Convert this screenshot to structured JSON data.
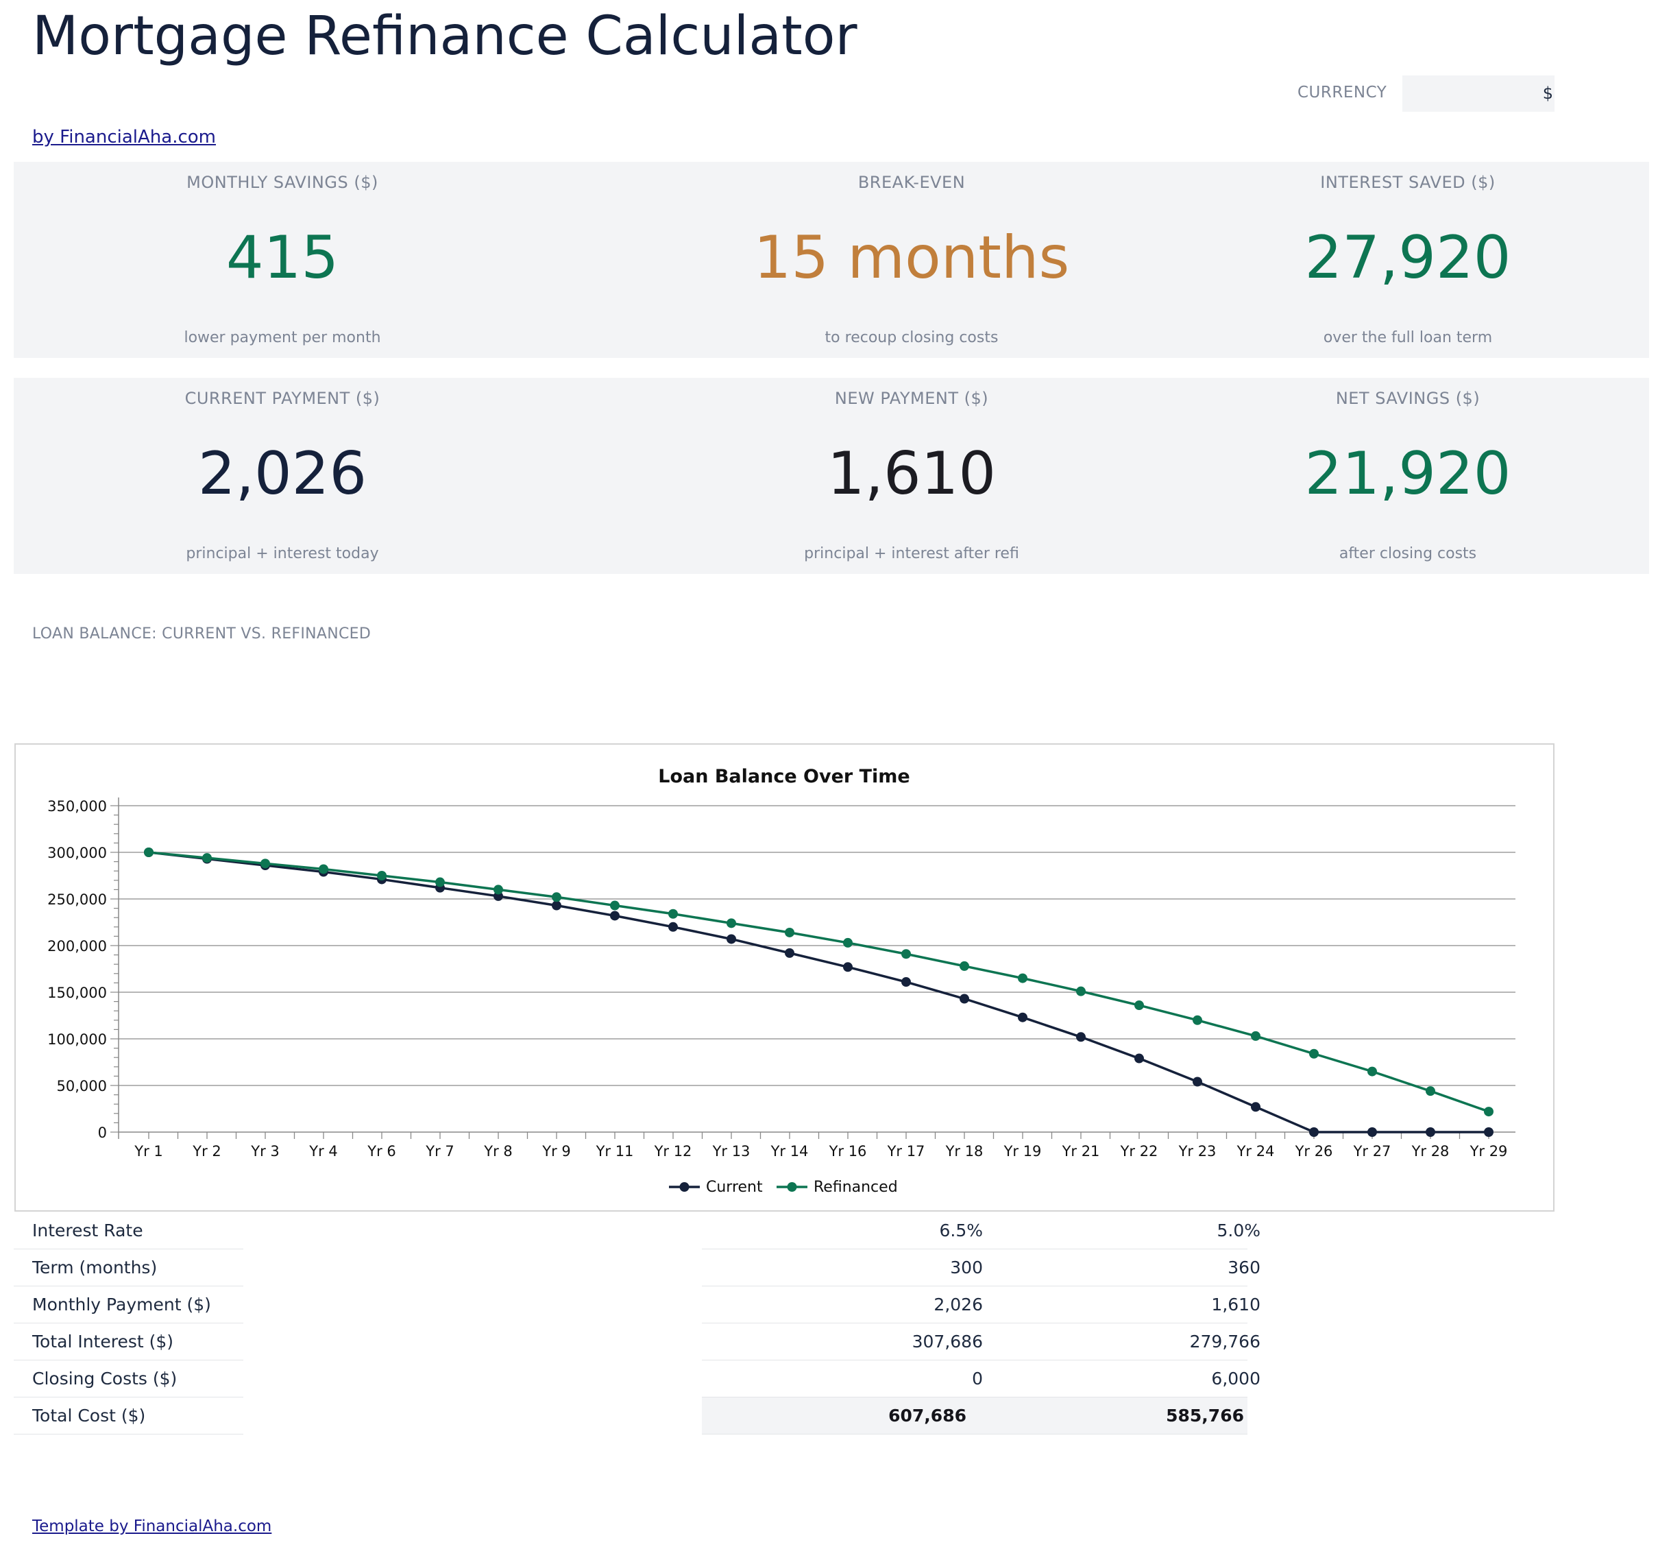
{
  "header": {
    "title": "Mortgage Refinance Calculator",
    "byline": "by FinancialAha.com",
    "currency_label": "CURRENCY",
    "currency_value": "$"
  },
  "kpis": {
    "monthly_savings": {
      "label": "MONTHLY SAVINGS ($)",
      "value": "415",
      "sub": "lower payment per month"
    },
    "break_even": {
      "label": "BREAK-EVEN",
      "value": "15 months",
      "sub": "to recoup closing costs"
    },
    "interest_saved": {
      "label": "INTEREST SAVED ($)",
      "value": "27,920",
      "sub": "over the full loan term"
    },
    "current_payment": {
      "label": "CURRENT PAYMENT ($)",
      "value": "2,026",
      "sub": "principal + interest today"
    },
    "new_payment": {
      "label": "NEW PAYMENT ($)",
      "value": "1,610",
      "sub": "principal + interest after refi"
    },
    "net_savings": {
      "label": "NET SAVINGS ($)",
      "value": "21,920",
      "sub": "after closing costs"
    }
  },
  "colors": {
    "green": "#0d7552",
    "orange": "#c17f3c",
    "navy": "#15213b",
    "current_series": "#15213b",
    "refinanced_series": "#0d7552"
  },
  "section": {
    "chart_label": "LOAN BALANCE: CURRENT VS. REFINANCED"
  },
  "chart_data": {
    "type": "line",
    "title": "Loan Balance Over Time",
    "xlabel": "",
    "ylabel": "",
    "ylim": [
      0,
      350000
    ],
    "yticks": [
      "0",
      "50,000",
      "100,000",
      "150,000",
      "200,000",
      "250,000",
      "300,000",
      "350,000"
    ],
    "grid": true,
    "legend": "bottom",
    "categories": [
      "Yr 1",
      "Yr 2",
      "Yr 3",
      "Yr 4",
      "Yr 6",
      "Yr 7",
      "Yr 8",
      "Yr 9",
      "Yr 11",
      "Yr 12",
      "Yr 13",
      "Yr 14",
      "Yr 16",
      "Yr 17",
      "Yr 18",
      "Yr 19",
      "Yr 21",
      "Yr 22",
      "Yr 23",
      "Yr 24",
      "Yr 26",
      "Yr 27",
      "Yr 28",
      "Yr 29"
    ],
    "series": [
      {
        "name": "Current",
        "values": [
          300000,
          293000,
          286000,
          279000,
          271000,
          262000,
          253000,
          243000,
          232000,
          220000,
          207000,
          192000,
          177000,
          161000,
          143000,
          123000,
          102000,
          79000,
          54000,
          27000,
          0,
          0,
          0,
          0
        ]
      },
      {
        "name": "Refinanced",
        "values": [
          300000,
          294000,
          288000,
          282000,
          275000,
          268000,
          260000,
          252000,
          243000,
          234000,
          224000,
          214000,
          203000,
          191000,
          178000,
          165000,
          151000,
          136000,
          120000,
          103000,
          84000,
          65000,
          44000,
          22000
        ]
      }
    ]
  },
  "comparison": {
    "rows": [
      {
        "label": "Interest Rate",
        "current": "6.5%",
        "new": "5.0%"
      },
      {
        "label": "Term (months)",
        "current": "300",
        "new": "360"
      },
      {
        "label": "Monthly Payment ($)",
        "current": "2,026",
        "new": "1,610"
      },
      {
        "label": "Total Interest ($)",
        "current": "307,686",
        "new": "279,766"
      },
      {
        "label": "Closing Costs ($)",
        "current": "0",
        "new": "6,000"
      },
      {
        "label": "Total Cost ($)",
        "current": "607,686",
        "new": "585,766"
      }
    ]
  },
  "footer": {
    "link": "Template by FinancialAha.com"
  }
}
